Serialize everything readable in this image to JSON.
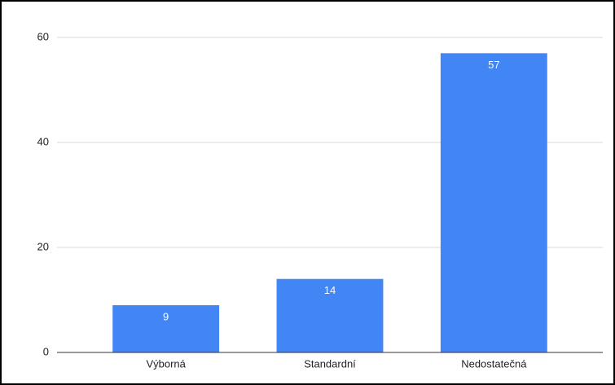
{
  "chart_data": {
    "type": "bar",
    "categories": [
      "Výborná",
      "Standardní",
      "Nedostatečná"
    ],
    "values": [
      9,
      14,
      57
    ],
    "color": "#4285f4",
    "ylim": [
      0,
      60
    ],
    "yticks": [
      0,
      20,
      40,
      60
    ],
    "grid": true
  }
}
